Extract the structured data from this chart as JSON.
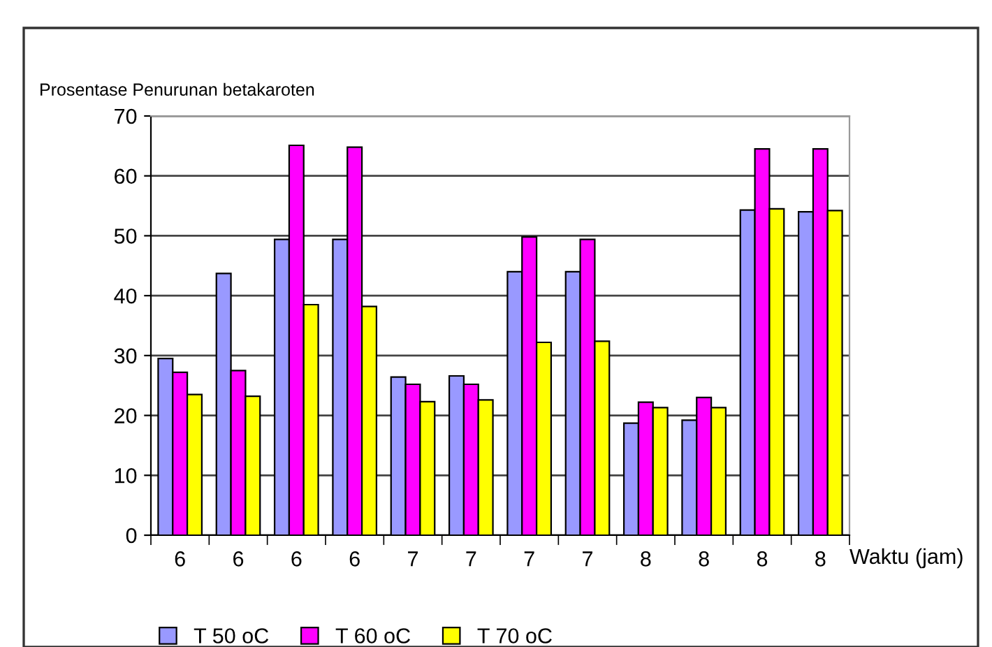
{
  "chart_data": {
    "type": "bar",
    "ylabel": "Prosentase Penurunan betakaroten",
    "xlabel": "Waktu (jam)",
    "categories": [
      "6",
      "6",
      "6",
      "6",
      "7",
      "7",
      "7",
      "7",
      "8",
      "8",
      "8",
      "8"
    ],
    "series": [
      {
        "name": "T 50 oC",
        "color": "#9999ff",
        "values": [
          29.5,
          43.7,
          49.4,
          49.4,
          26.4,
          26.6,
          44.0,
          44.0,
          18.7,
          19.2,
          54.3,
          54.0
        ]
      },
      {
        "name": "T 60 oC",
        "color": "#ff00ff",
        "values": [
          27.2,
          27.5,
          65.1,
          64.8,
          25.2,
          25.2,
          49.8,
          49.4,
          22.2,
          23.0,
          64.5,
          64.5
        ]
      },
      {
        "name": "T 70 oC",
        "color": "#ffff00",
        "values": [
          23.5,
          23.2,
          38.5,
          38.2,
          22.3,
          22.6,
          32.2,
          32.4,
          21.3,
          21.3,
          54.5,
          54.2
        ]
      }
    ],
    "ylim": [
      0,
      70
    ],
    "yticks": [
      0,
      10,
      20,
      30,
      40,
      50,
      60,
      70
    ],
    "grid": "y",
    "legend": "bottom left"
  }
}
